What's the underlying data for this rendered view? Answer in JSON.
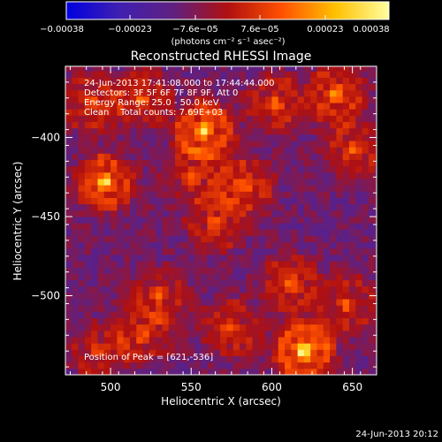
{
  "chart_data": {
    "type": "heatmap",
    "title": "Reconstructed RHESSI Image",
    "xlabel": "Heliocentric X (arcsec)",
    "ylabel": "Heliocentric Y (arcsec)",
    "xlim": [
      472,
      665
    ],
    "ylim": [
      -550,
      -355
    ],
    "x_ticks": [
      500,
      550,
      600,
      650
    ],
    "y_ticks": [
      -400,
      -450,
      -500
    ],
    "x_tick_labels": [
      "500",
      "550",
      "600",
      "650"
    ],
    "y_tick_labels": [
      "−400",
      "−450",
      "−500"
    ],
    "colorbar": {
      "ticks": [
        -0.00038,
        -0.00023,
        -7.6e-05,
        7.6e-05,
        0.00023,
        0.00038
      ],
      "tick_labels": [
        "−0.00038",
        "−0.00023",
        "−7.6e−05",
        "7.6e−05",
        "0.00023",
        "0.00038"
      ],
      "unit_label": "(photons cm⁻² s⁻¹ asec⁻²)",
      "colors": [
        "#0000e0",
        "#4020b0",
        "#602080",
        "#b01010",
        "#ff5000",
        "#ffc000",
        "#ffffa0"
      ]
    },
    "annotations": [
      "24-Jun-2013 17:41:08.000 to 17:44:44.000",
      "Detectors: 3F 5F 6F 7F 8F 9F, Att 0",
      "Energy Range: 25.0 - 50.0 keV",
      "Clean    Total counts: 7.69E+03"
    ],
    "peak_label": "Position of Peak = [621,-536]",
    "sources": [
      {
        "x": 620,
        "y": -535,
        "peak": 1.0
      },
      {
        "x": 497,
        "y": -428,
        "peak": 0.85
      },
      {
        "x": 558,
        "y": -395,
        "peak": 0.9
      },
      {
        "x": 583,
        "y": -430,
        "peak": 0.6
      },
      {
        "x": 602,
        "y": -378,
        "peak": 0.55
      },
      {
        "x": 640,
        "y": -372,
        "peak": 0.7
      },
      {
        "x": 650,
        "y": -408,
        "peak": 0.55
      },
      {
        "x": 488,
        "y": -378,
        "peak": 0.55
      },
      {
        "x": 520,
        "y": -375,
        "peak": 0.5
      },
      {
        "x": 530,
        "y": -500,
        "peak": 0.5
      },
      {
        "x": 520,
        "y": -525,
        "peak": 0.45
      },
      {
        "x": 575,
        "y": -520,
        "peak": 0.55
      },
      {
        "x": 612,
        "y": -492,
        "peak": 0.55
      },
      {
        "x": 647,
        "y": -505,
        "peak": 0.5
      },
      {
        "x": 493,
        "y": -535,
        "peak": 0.45
      },
      {
        "x": 565,
        "y": -455,
        "peak": 0.5
      },
      {
        "x": 550,
        "y": -425,
        "peak": 0.45
      }
    ]
  },
  "footer_timestamp": "24-Jun-2013 20:12"
}
